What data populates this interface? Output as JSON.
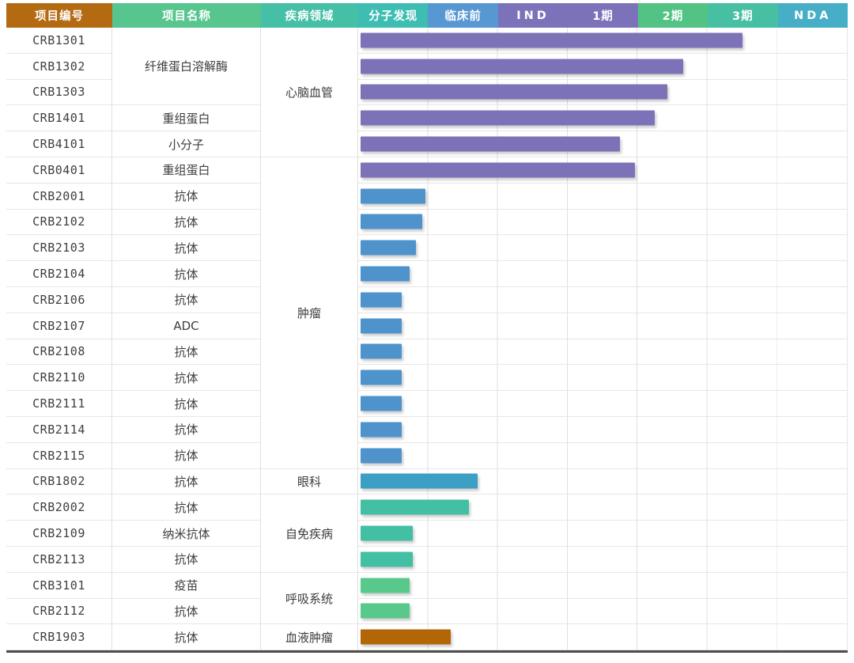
{
  "header": {
    "columns": [
      {
        "label": "项目编号",
        "style": "background:#b36a11"
      },
      {
        "label": "项目名称",
        "style": "background:#56c68e"
      },
      {
        "label": "疾病领域",
        "style": "background:#45bfa6"
      },
      {
        "label": "分子发现",
        "style": "background:#3ebdb2"
      },
      {
        "label": "临床前",
        "style": "background:#5797d2"
      },
      {
        "label": "IND",
        "style": "background:#7c72ba"
      },
      {
        "label": "1期",
        "style": "background:#7c72ba"
      },
      {
        "label": "2期",
        "style": "background:#52c385"
      },
      {
        "label": "3期",
        "style": "background:#47bfa2"
      },
      {
        "label": "NDA",
        "style": "background:#46aec6"
      }
    ]
  },
  "rows": [
    {
      "code": "CRB1301",
      "name": "纤维蛋白溶解酶",
      "disease": "心脑血管",
      "stage_end": 5.47,
      "bar_style": "width:78.1%;background:#7c72b8"
    },
    {
      "code": "CRB1302",
      "stage_end": 4.63,
      "bar_style": "width:66.1%;background:#7c72b8"
    },
    {
      "code": "CRB1303",
      "stage_end": 4.4,
      "bar_style": "width:62.8%;background:#7c72b8"
    },
    {
      "code": "CRB1401",
      "name": "重组蛋白",
      "stage_end": 4.22,
      "bar_style": "width:60.2%;background:#7c72b8"
    },
    {
      "code": "CRB4101",
      "name": "小分子",
      "stage_end": 3.72,
      "bar_style": "width:53.1%;background:#7c72b8"
    },
    {
      "code": "CRB0401",
      "name": "重组蛋白",
      "disease": "肿瘤",
      "stage_end": 3.93,
      "bar_style": "width:56.2%;background:#7c72b8"
    },
    {
      "code": "CRB2001",
      "name": "抗体",
      "stage_end": 0.93,
      "bar_style": "width:13.3%;background:#4e93cc"
    },
    {
      "code": "CRB2102",
      "name": "抗体",
      "stage_end": 0.89,
      "bar_style": "width:12.7%;background:#4e93cc"
    },
    {
      "code": "CRB2103",
      "name": "抗体",
      "stage_end": 0.8,
      "bar_style": "width:11.4%;background:#4e93cc"
    },
    {
      "code": "CRB2104",
      "name": "抗体",
      "stage_end": 0.7,
      "bar_style": "width:10.1%;background:#4e93cc"
    },
    {
      "code": "CRB2106",
      "name": "抗体",
      "stage_end": 0.59,
      "bar_style": "width:8.4%;background:#4e93cc"
    },
    {
      "code": "CRB2107",
      "name": "ADC",
      "stage_end": 0.59,
      "bar_style": "width:8.4%;background:#4e93cc"
    },
    {
      "code": "CRB2108",
      "name": "抗体",
      "stage_end": 0.59,
      "bar_style": "width:8.4%;background:#4e93cc"
    },
    {
      "code": "CRB2110",
      "name": "抗体",
      "stage_end": 0.59,
      "bar_style": "width:8.4%;background:#4e93cc"
    },
    {
      "code": "CRB2111",
      "name": "抗体",
      "stage_end": 0.59,
      "bar_style": "width:8.4%;background:#4e93cc"
    },
    {
      "code": "CRB2114",
      "name": "抗体",
      "stage_end": 0.59,
      "bar_style": "width:8.4%;background:#4e93cc"
    },
    {
      "code": "CRB2115",
      "name": "抗体",
      "stage_end": 0.59,
      "bar_style": "width:8.4%;background:#4e93cc"
    },
    {
      "code": "CRB1802",
      "name": "抗体",
      "disease": "眼科",
      "stage_end": 1.68,
      "bar_style": "width:24.0%;background:#3ca0c4"
    },
    {
      "code": "CRB2002",
      "name": "抗体",
      "disease": "自免疾病",
      "stage_end": 1.55,
      "bar_style": "width:22.1%;background:#43bfa4"
    },
    {
      "code": "CRB2109",
      "name": "纳米抗体",
      "stage_end": 0.75,
      "bar_style": "width:10.7%;background:#43bfa4"
    },
    {
      "code": "CRB2113",
      "name": "抗体",
      "stage_end": 0.75,
      "bar_style": "width:10.7%;background:#43bfa4"
    },
    {
      "code": "CRB3101",
      "name": "疫苗",
      "disease": "呼吸系统",
      "stage_end": 0.7,
      "bar_style": "width:10.1%;background:#58c98b"
    },
    {
      "code": "CRB2112",
      "name": "抗体",
      "stage_end": 0.7,
      "bar_style": "width:10.1%;background:#58c98b"
    },
    {
      "code": "CRB1903",
      "name": "抗体",
      "disease": "血液肿瘤",
      "stage_end": 1.3,
      "bar_style": "width:18.5%;background:#b26608"
    }
  ],
  "chart_data": {
    "type": "bar",
    "orientation": "horizontal",
    "stages": [
      "分子发现",
      "临床前",
      "IND",
      "1期",
      "2期",
      "3期",
      "NDA"
    ],
    "unit": "rightmost stage column reached (0–7)",
    "categories": [
      "CRB1301",
      "CRB1302",
      "CRB1303",
      "CRB1401",
      "CRB4101",
      "CRB0401",
      "CRB2001",
      "CRB2102",
      "CRB2103",
      "CRB2104",
      "CRB2106",
      "CRB2107",
      "CRB2108",
      "CRB2110",
      "CRB2111",
      "CRB2114",
      "CRB2115",
      "CRB1802",
      "CRB2002",
      "CRB2109",
      "CRB2113",
      "CRB3101",
      "CRB2112",
      "CRB1903"
    ],
    "values": [
      5.47,
      4.63,
      4.4,
      4.22,
      3.72,
      3.93,
      0.93,
      0.89,
      0.8,
      0.7,
      0.59,
      0.59,
      0.59,
      0.59,
      0.59,
      0.59,
      0.59,
      1.68,
      1.55,
      0.75,
      0.75,
      0.7,
      0.7,
      1.3
    ],
    "bar_colors": [
      "#7c72b8",
      "#7c72b8",
      "#7c72b8",
      "#7c72b8",
      "#7c72b8",
      "#7c72b8",
      "#4e93cc",
      "#4e93cc",
      "#4e93cc",
      "#4e93cc",
      "#4e93cc",
      "#4e93cc",
      "#4e93cc",
      "#4e93cc",
      "#4e93cc",
      "#4e93cc",
      "#4e93cc",
      "#3ca0c4",
      "#43bfa4",
      "#43bfa4",
      "#43bfa4",
      "#58c98b",
      "#58c98b",
      "#b26608"
    ],
    "project_names": [
      "纤维蛋白溶解酶",
      "纤维蛋白溶解酶",
      "纤维蛋白溶解酶",
      "重组蛋白",
      "小分子",
      "重组蛋白",
      "抗体",
      "抗体",
      "抗体",
      "抗体",
      "抗体",
      "ADC",
      "抗体",
      "抗体",
      "抗体",
      "抗体",
      "抗体",
      "抗体",
      "抗体",
      "纳米抗体",
      "抗体",
      "疫苗",
      "抗体",
      "抗体"
    ],
    "disease_groups": [
      {
        "label": "心脑血管",
        "rows": [
          "CRB1301",
          "CRB1302",
          "CRB1303",
          "CRB1401",
          "CRB4101"
        ]
      },
      {
        "label": "肿瘤",
        "rows": [
          "CRB0401",
          "CRB2001",
          "CRB2102",
          "CRB2103",
          "CRB2104",
          "CRB2106",
          "CRB2107",
          "CRB2108",
          "CRB2110",
          "CRB2111",
          "CRB2114",
          "CRB2115"
        ]
      },
      {
        "label": "眼科",
        "rows": [
          "CRB1802"
        ]
      },
      {
        "label": "自免疾病",
        "rows": [
          "CRB2002",
          "CRB2109",
          "CRB2113"
        ]
      },
      {
        "label": "呼吸系统",
        "rows": [
          "CRB3101",
          "CRB2112"
        ]
      },
      {
        "label": "血液肿瘤",
        "rows": [
          "CRB1903"
        ]
      }
    ],
    "grid": true,
    "legend": false
  }
}
